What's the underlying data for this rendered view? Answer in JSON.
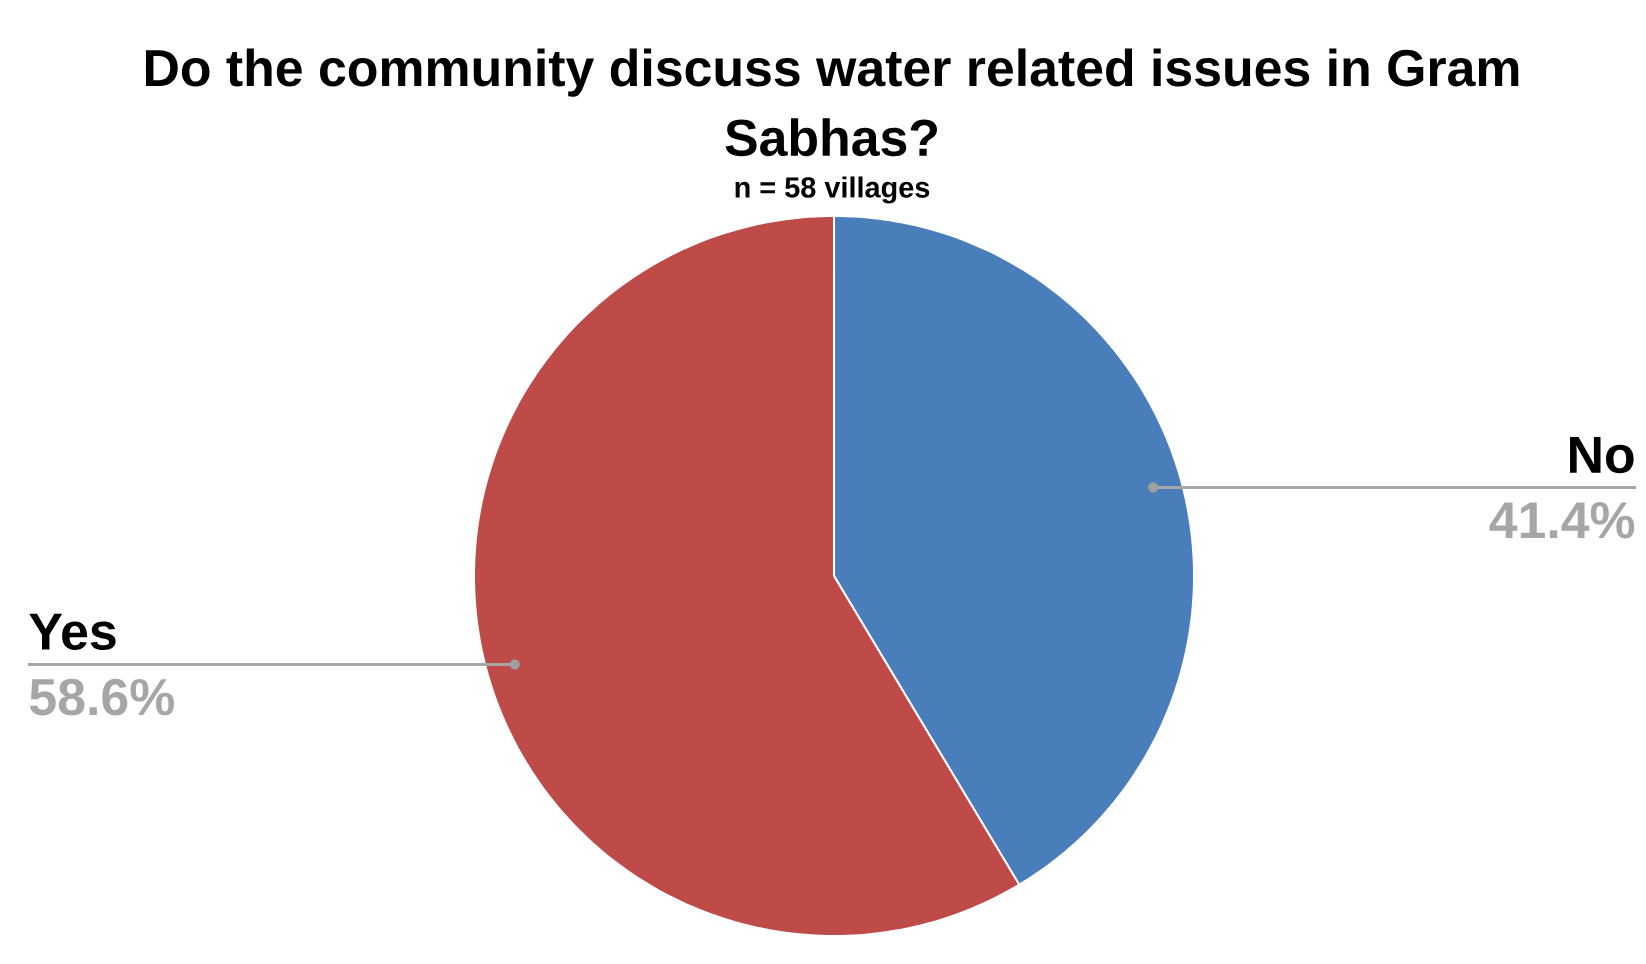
{
  "chart_data": {
    "type": "pie",
    "title": "Do the community discuss water related issues in Gram Sabhas?",
    "subtitle": "n = 58 villages",
    "categories": [
      "No",
      "Yes"
    ],
    "values": [
      41.4,
      58.6
    ],
    "colors": [
      "#4a7ebb",
      "#be4b48"
    ],
    "value_labels": [
      "41.4%",
      "58.6%"
    ]
  }
}
